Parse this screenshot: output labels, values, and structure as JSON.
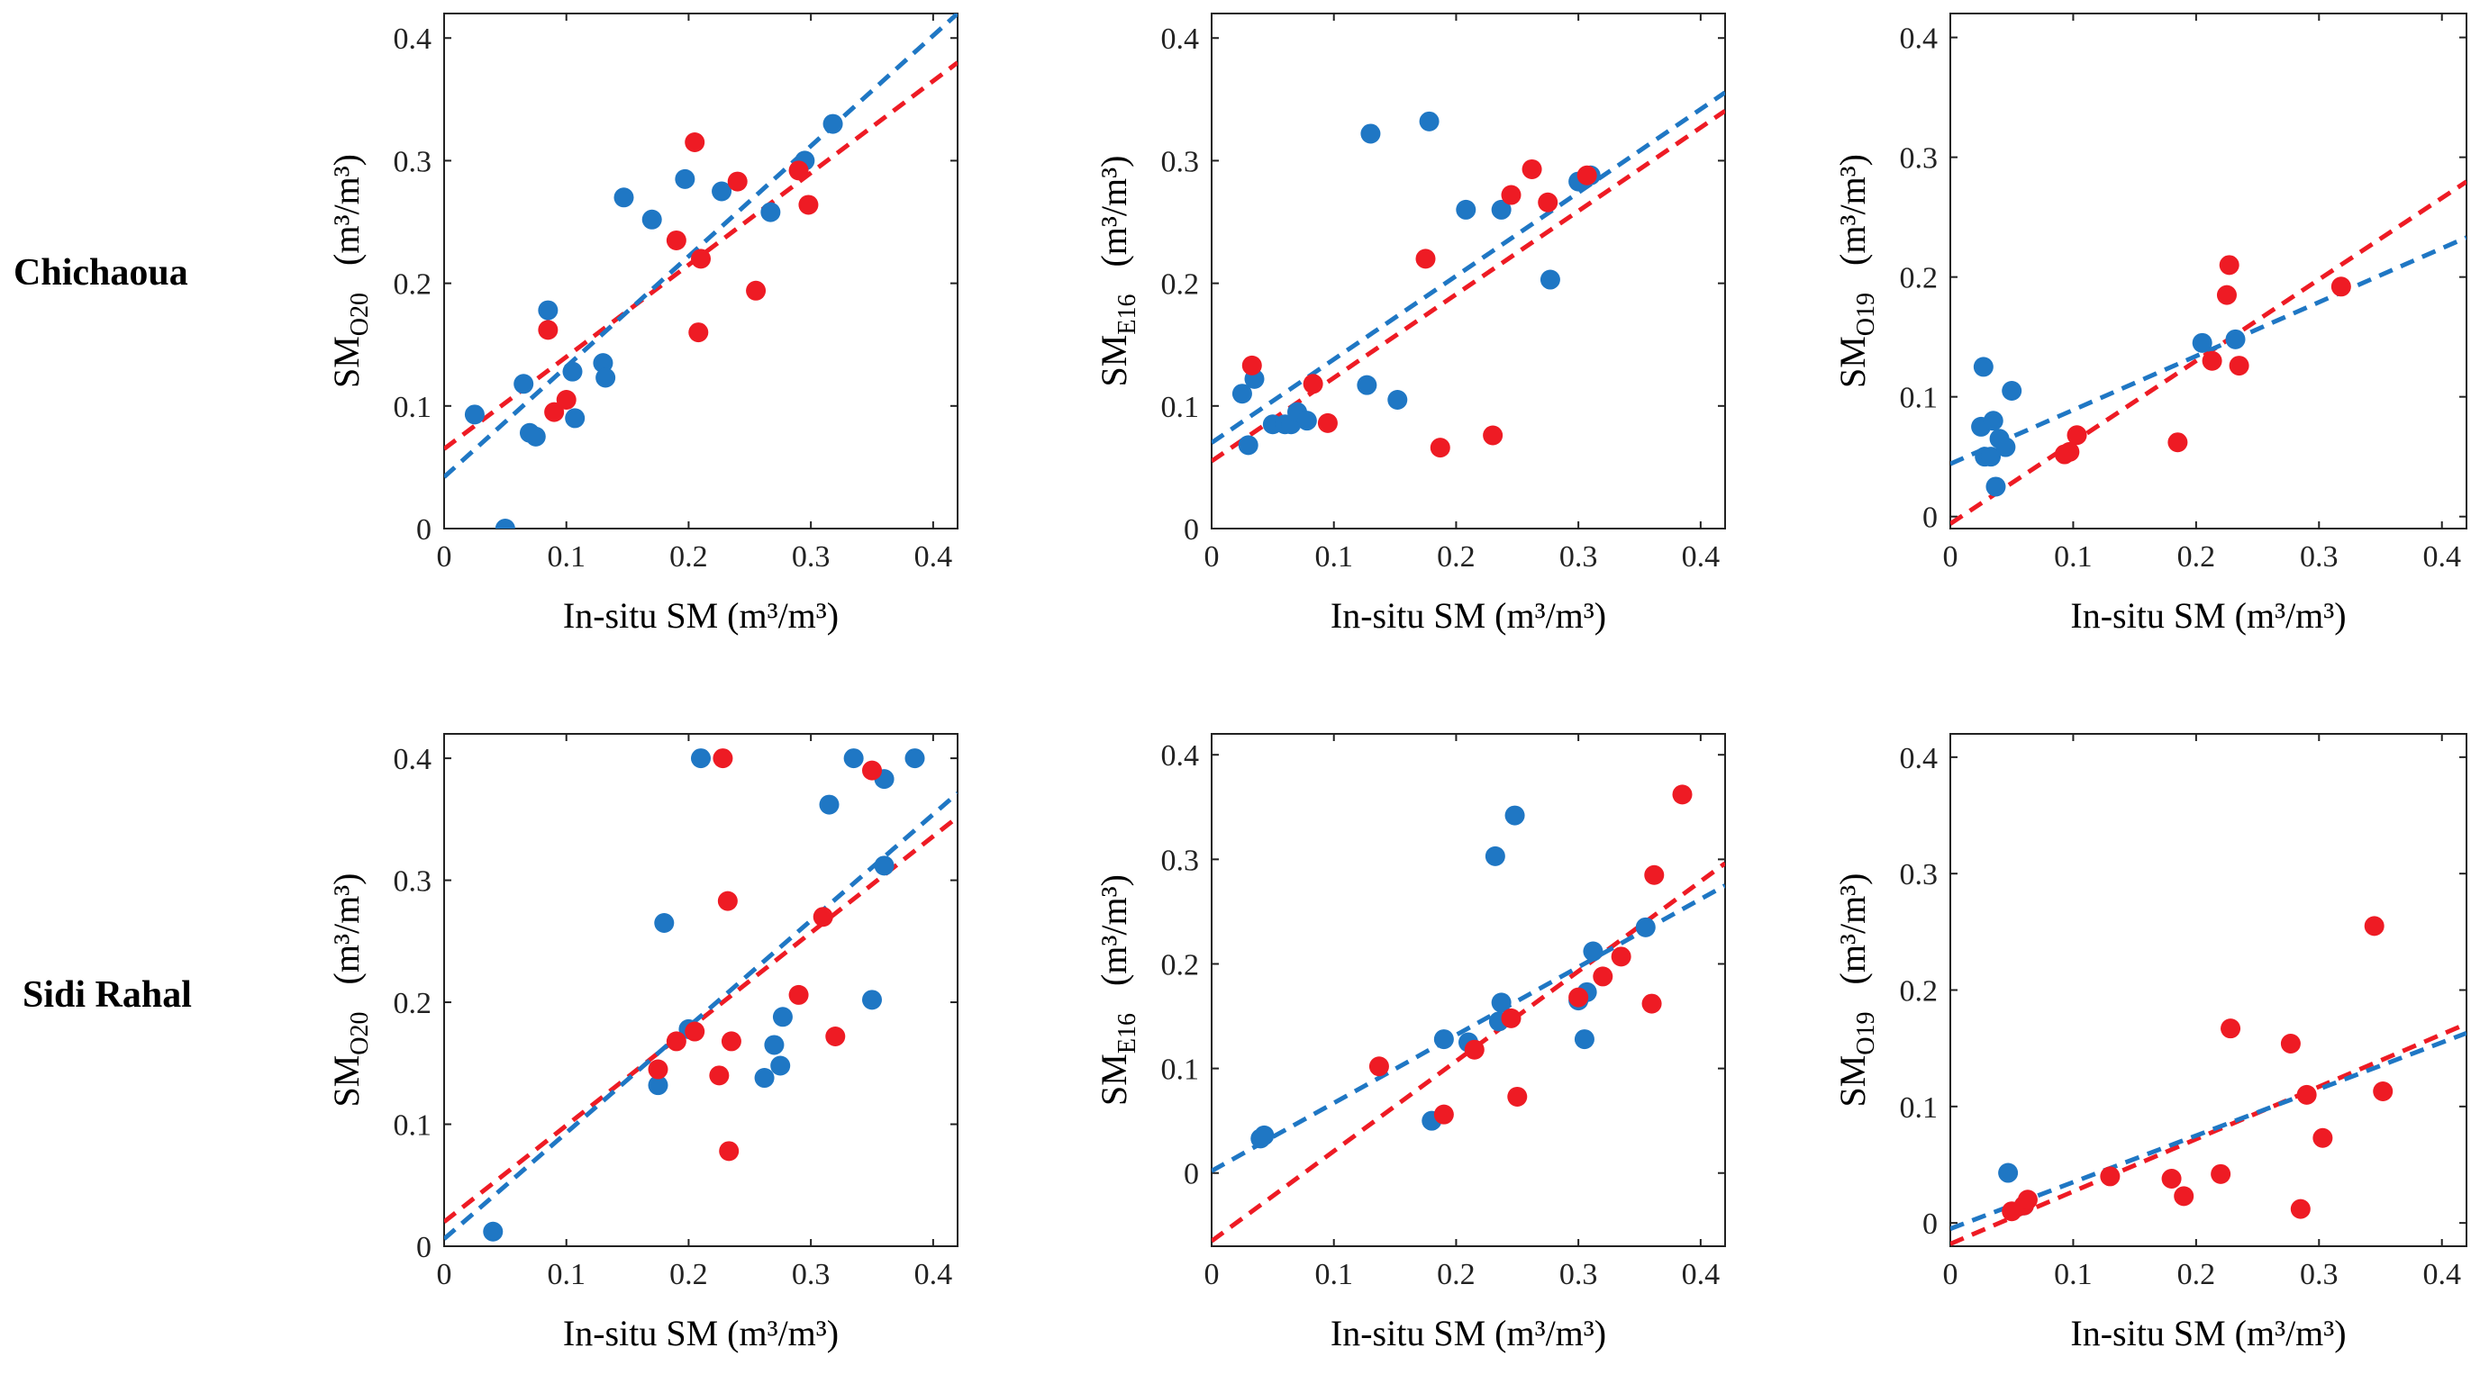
{
  "row_labels": [
    "Chichaoua",
    "Sidi Rahal"
  ],
  "colors": {
    "blue": "#1f77c4",
    "red": "#ee1b24"
  },
  "chart_data": [
    {
      "type": "scatter",
      "row": 0,
      "col": 0,
      "xlabel": "In-situ SM (m³/m³)",
      "ylabel_main": "SM",
      "ylabel_sub": "O20",
      "ylabel_unit": "(m³/m³)",
      "xlim": [
        0,
        0.42
      ],
      "ylim": [
        0,
        0.42
      ],
      "xticks": [
        "0",
        "0.1",
        "0.2",
        "0.3",
        "0.4"
      ],
      "yticks": [
        "0",
        "0.1",
        "0.2",
        "0.3",
        "0.4"
      ],
      "series": [
        {
          "name": "blue",
          "color": "#1f77c4",
          "points": [
            [
              0.025,
              0.093
            ],
            [
              0.05,
              0.0
            ],
            [
              0.065,
              0.118
            ],
            [
              0.07,
              0.078
            ],
            [
              0.075,
              0.075
            ],
            [
              0.085,
              0.178
            ],
            [
              0.105,
              0.128
            ],
            [
              0.107,
              0.09
            ],
            [
              0.13,
              0.135
            ],
            [
              0.132,
              0.123
            ],
            [
              0.147,
              0.27
            ],
            [
              0.17,
              0.252
            ],
            [
              0.197,
              0.285
            ],
            [
              0.227,
              0.275
            ],
            [
              0.267,
              0.258
            ],
            [
              0.295,
              0.3
            ],
            [
              0.318,
              0.33
            ]
          ],
          "fit": {
            "intercept": 0.042,
            "slope": 0.9
          }
        },
        {
          "name": "red",
          "color": "#ee1b24",
          "points": [
            [
              0.085,
              0.162
            ],
            [
              0.09,
              0.095
            ],
            [
              0.1,
              0.105
            ],
            [
              0.19,
              0.235
            ],
            [
              0.205,
              0.315
            ],
            [
              0.208,
              0.16
            ],
            [
              0.21,
              0.22
            ],
            [
              0.24,
              0.283
            ],
            [
              0.255,
              0.194
            ],
            [
              0.29,
              0.292
            ],
            [
              0.298,
              0.264
            ]
          ],
          "fit": {
            "intercept": 0.065,
            "slope": 0.75
          }
        }
      ]
    },
    {
      "type": "scatter",
      "row": 0,
      "col": 1,
      "xlabel": "In-situ SM (m³/m³)",
      "ylabel_main": "SM",
      "ylabel_sub": "E16",
      "ylabel_unit": "(m³/m³)",
      "xlim": [
        0,
        0.42
      ],
      "ylim": [
        0,
        0.42
      ],
      "xticks": [
        "0",
        "0.1",
        "0.2",
        "0.3",
        "0.4"
      ],
      "yticks": [
        "0",
        "0.1",
        "0.2",
        "0.3",
        "0.4"
      ],
      "series": [
        {
          "name": "blue",
          "color": "#1f77c4",
          "points": [
            [
              0.025,
              0.11
            ],
            [
              0.03,
              0.068
            ],
            [
              0.035,
              0.122
            ],
            [
              0.05,
              0.085
            ],
            [
              0.06,
              0.085
            ],
            [
              0.065,
              0.085
            ],
            [
              0.07,
              0.095
            ],
            [
              0.078,
              0.088
            ],
            [
              0.127,
              0.117
            ],
            [
              0.13,
              0.322
            ],
            [
              0.152,
              0.105
            ],
            [
              0.178,
              0.332
            ],
            [
              0.208,
              0.26
            ],
            [
              0.237,
              0.26
            ],
            [
              0.277,
              0.203
            ],
            [
              0.3,
              0.283
            ],
            [
              0.31,
              0.288
            ]
          ],
          "fit": {
            "intercept": 0.07,
            "slope": 0.68
          }
        },
        {
          "name": "red",
          "color": "#ee1b24",
          "points": [
            [
              0.033,
              0.133
            ],
            [
              0.083,
              0.118
            ],
            [
              0.095,
              0.086
            ],
            [
              0.175,
              0.22
            ],
            [
              0.187,
              0.066
            ],
            [
              0.23,
              0.076
            ],
            [
              0.245,
              0.272
            ],
            [
              0.262,
              0.293
            ],
            [
              0.275,
              0.266
            ],
            [
              0.307,
              0.288
            ]
          ],
          "fit": {
            "intercept": 0.055,
            "slope": 0.68
          }
        }
      ]
    },
    {
      "type": "scatter",
      "row": 0,
      "col": 2,
      "xlabel": "In-situ SM (m³/m³)",
      "ylabel_main": "SM",
      "ylabel_sub": "O19",
      "ylabel_unit": "(m³/m³)",
      "xlim": [
        0,
        0.42
      ],
      "ylim": [
        -0.01,
        0.42
      ],
      "xticks": [
        "0",
        "0.1",
        "0.2",
        "0.3",
        "0.4"
      ],
      "yticks": [
        "0",
        "0.1",
        "0.2",
        "0.3",
        "0.4"
      ],
      "series": [
        {
          "name": "blue",
          "color": "#1f77c4",
          "points": [
            [
              0.025,
              0.075
            ],
            [
              0.027,
              0.125
            ],
            [
              0.028,
              0.05
            ],
            [
              0.033,
              0.05
            ],
            [
              0.035,
              0.08
            ],
            [
              0.037,
              0.025
            ],
            [
              0.04,
              0.065
            ],
            [
              0.045,
              0.058
            ],
            [
              0.05,
              0.105
            ],
            [
              0.205,
              0.145
            ],
            [
              0.232,
              0.148
            ]
          ],
          "fit": {
            "intercept": 0.044,
            "slope": 0.45
          }
        },
        {
          "name": "red",
          "color": "#ee1b24",
          "points": [
            [
              0.093,
              0.052
            ],
            [
              0.097,
              0.054
            ],
            [
              0.103,
              0.068
            ],
            [
              0.185,
              0.062
            ],
            [
              0.213,
              0.13
            ],
            [
              0.225,
              0.185
            ],
            [
              0.227,
              0.21
            ],
            [
              0.235,
              0.126
            ],
            [
              0.318,
              0.192
            ]
          ],
          "fit": {
            "intercept": -0.006,
            "slope": 0.68
          }
        }
      ]
    },
    {
      "type": "scatter",
      "row": 1,
      "col": 0,
      "xlabel": "In-situ SM (m³/m³)",
      "ylabel_main": "SM",
      "ylabel_sub": "O20",
      "ylabel_unit": "(m³/m³)",
      "xlim": [
        0,
        0.42
      ],
      "ylim": [
        0,
        0.42
      ],
      "xticks": [
        "0",
        "0.1",
        "0.2",
        "0.3",
        "0.4"
      ],
      "yticks": [
        "0",
        "0.1",
        "0.2",
        "0.3",
        "0.4"
      ],
      "series": [
        {
          "name": "blue",
          "color": "#1f77c4",
          "points": [
            [
              0.04,
              0.012
            ],
            [
              0.175,
              0.132
            ],
            [
              0.18,
              0.265
            ],
            [
              0.2,
              0.178
            ],
            [
              0.21,
              0.4
            ],
            [
              0.262,
              0.138
            ],
            [
              0.27,
              0.165
            ],
            [
              0.275,
              0.148
            ],
            [
              0.277,
              0.188
            ],
            [
              0.315,
              0.362
            ],
            [
              0.335,
              0.4
            ],
            [
              0.35,
              0.202
            ],
            [
              0.36,
              0.312
            ],
            [
              0.36,
              0.383
            ],
            [
              0.385,
              0.4
            ]
          ],
          "fit": {
            "intercept": 0.006,
            "slope": 0.87
          }
        },
        {
          "name": "red",
          "color": "#ee1b24",
          "points": [
            [
              0.175,
              0.145
            ],
            [
              0.19,
              0.168
            ],
            [
              0.205,
              0.176
            ],
            [
              0.225,
              0.14
            ],
            [
              0.228,
              0.4
            ],
            [
              0.232,
              0.283
            ],
            [
              0.233,
              0.078
            ],
            [
              0.235,
              0.168
            ],
            [
              0.31,
              0.27
            ],
            [
              0.29,
              0.206
            ],
            [
              0.32,
              0.172
            ],
            [
              0.35,
              0.39
            ]
          ],
          "fit": {
            "intercept": 0.02,
            "slope": 0.79
          }
        }
      ]
    },
    {
      "type": "scatter",
      "row": 1,
      "col": 1,
      "xlabel": "In-situ SM (m³/m³)",
      "ylabel_main": "SM",
      "ylabel_sub": "E16",
      "ylabel_unit": "(m³/m³)",
      "xlim": [
        0,
        0.42
      ],
      "ylim": [
        -0.07,
        0.42
      ],
      "xticks": [
        "0",
        "0.1",
        "0.2",
        "0.3",
        "0.4"
      ],
      "yticks": [
        "0",
        "0.1",
        "0.2",
        "0.3",
        "0.4"
      ],
      "series": [
        {
          "name": "blue",
          "color": "#1f77c4",
          "points": [
            [
              0.04,
              0.033
            ],
            [
              0.043,
              0.036
            ],
            [
              0.18,
              0.05
            ],
            [
              0.19,
              0.128
            ],
            [
              0.21,
              0.125
            ],
            [
              0.232,
              0.303
            ],
            [
              0.235,
              0.145
            ],
            [
              0.237,
              0.163
            ],
            [
              0.248,
              0.342
            ],
            [
              0.3,
              0.165
            ],
            [
              0.305,
              0.128
            ],
            [
              0.307,
              0.173
            ],
            [
              0.312,
              0.212
            ],
            [
              0.355,
              0.235
            ]
          ],
          "fit": {
            "intercept": 0.002,
            "slope": 0.65
          }
        },
        {
          "name": "red",
          "color": "#ee1b24",
          "points": [
            [
              0.137,
              0.102
            ],
            [
              0.19,
              0.056
            ],
            [
              0.215,
              0.118
            ],
            [
              0.245,
              0.148
            ],
            [
              0.25,
              0.073
            ],
            [
              0.3,
              0.168
            ],
            [
              0.32,
              0.188
            ],
            [
              0.335,
              0.207
            ],
            [
              0.36,
              0.162
            ],
            [
              0.362,
              0.285
            ],
            [
              0.385,
              0.362
            ]
          ],
          "fit": {
            "intercept": -0.065,
            "slope": 0.86
          }
        }
      ]
    },
    {
      "type": "scatter",
      "row": 1,
      "col": 2,
      "xlabel": "In-situ SM (m³/m³)",
      "ylabel_main": "SM",
      "ylabel_sub": "O19",
      "ylabel_unit": "(m³/m³)",
      "xlim": [
        0,
        0.42
      ],
      "ylim": [
        -0.02,
        0.42
      ],
      "xticks": [
        "0",
        "0.1",
        "0.2",
        "0.3",
        "0.4"
      ],
      "yticks": [
        "0",
        "0.1",
        "0.2",
        "0.3",
        "0.4"
      ],
      "series": [
        {
          "name": "blue",
          "color": "#1f77c4",
          "points": [
            [
              0.047,
              0.043
            ],
            [
              0.06,
              0.015
            ]
          ],
          "fit": {
            "intercept": -0.005,
            "slope": 0.4
          }
        },
        {
          "name": "red",
          "color": "#ee1b24",
          "points": [
            [
              0.05,
              0.01
            ],
            [
              0.06,
              0.015
            ],
            [
              0.063,
              0.02
            ],
            [
              0.13,
              0.04
            ],
            [
              0.18,
              0.038
            ],
            [
              0.19,
              0.023
            ],
            [
              0.22,
              0.042
            ],
            [
              0.228,
              0.167
            ],
            [
              0.277,
              0.154
            ],
            [
              0.285,
              0.012
            ],
            [
              0.29,
              0.11
            ],
            [
              0.303,
              0.073
            ],
            [
              0.345,
              0.255
            ],
            [
              0.352,
              0.113
            ]
          ],
          "fit": {
            "intercept": -0.018,
            "slope": 0.45
          }
        }
      ]
    }
  ]
}
